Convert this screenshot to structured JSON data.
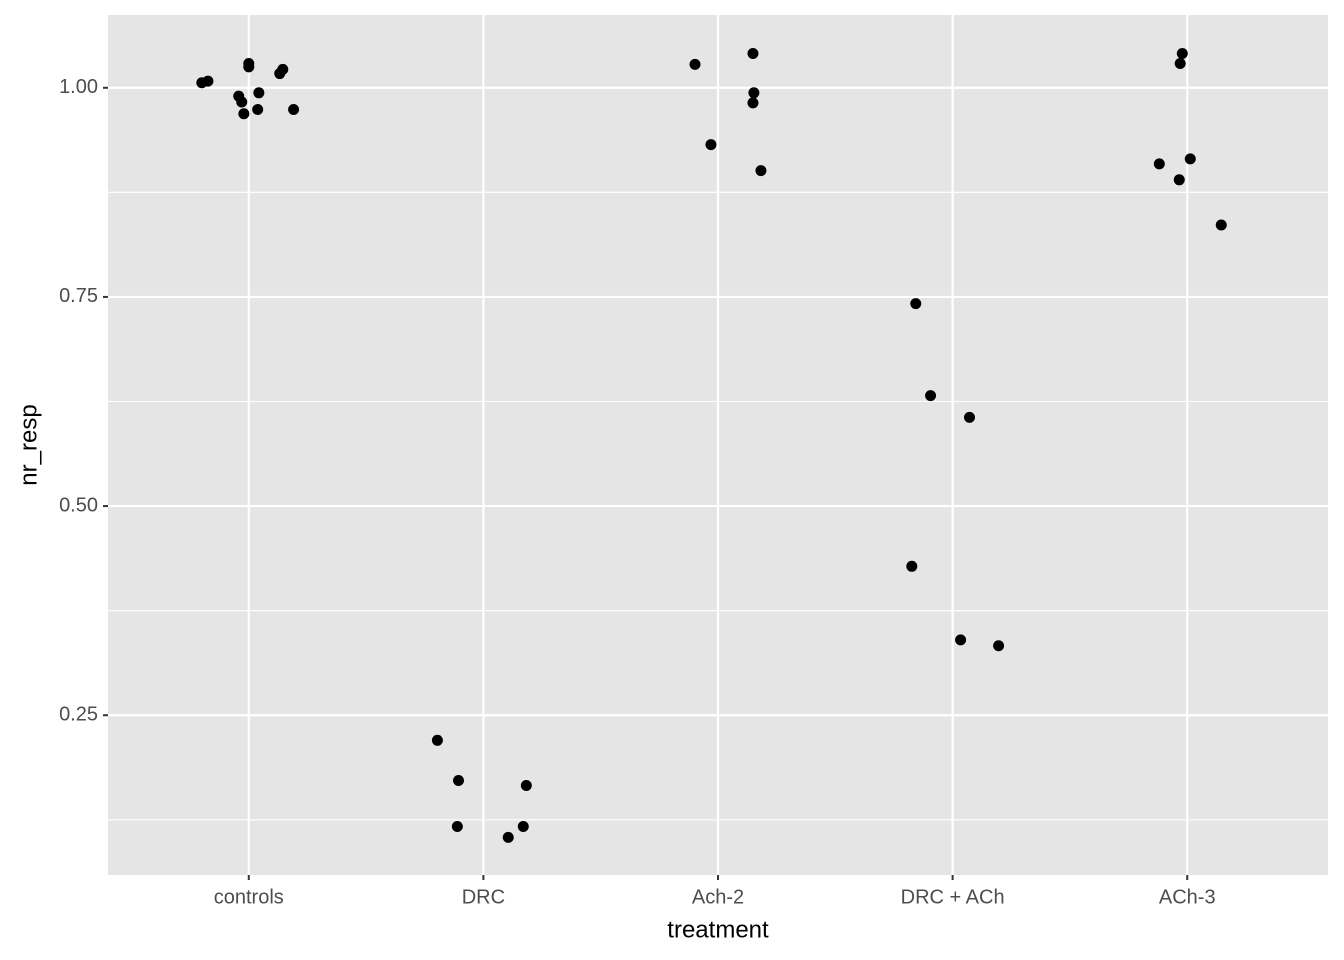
{
  "chart_data": {
    "type": "scatter",
    "x_label": "treatment",
    "y_label": "nr_resp",
    "xlim": [
      0.4,
      5.6
    ],
    "ylim": [
      0.059,
      1.087
    ],
    "xticks": [
      {
        "value": 1,
        "label": "controls"
      },
      {
        "value": 2,
        "label": "DRC"
      },
      {
        "value": 3,
        "label": "Ach-2"
      },
      {
        "value": 4,
        "label": "DRC + ACh"
      },
      {
        "value": 5,
        "label": "ACh-3"
      }
    ],
    "yticks": [
      {
        "value": 0.25,
        "label": "0.25"
      },
      {
        "value": 0.5,
        "label": "0.50"
      },
      {
        "value": 0.75,
        "label": "0.75"
      },
      {
        "value": 1,
        "label": "1.00"
      }
    ],
    "yminorticks": [
      0.125,
      0.375,
      0.625,
      0.875
    ],
    "grid": true,
    "series": [
      {
        "color": "#000000",
        "x": [
          0.8,
          0.826,
          0.957,
          0.97,
          0.979,
          1.0,
          1.0,
          1.038,
          1.043,
          1.132,
          1.145,
          1.191,
          1.804,
          1.894,
          1.889,
          2.106,
          2.17,
          2.183,
          2.902,
          2.97,
          3.149,
          3.153,
          3.149,
          3.183,
          3.843,
          3.906,
          4.072,
          3.826,
          4.034,
          4.196,
          4.979,
          4.97,
          4.881,
          4.966,
          5.013,
          5.145
        ],
        "values": [
          1.006,
          1.008,
          0.99,
          0.983,
          0.969,
          1.029,
          1.025,
          0.974,
          0.994,
          1.017,
          1.022,
          0.974,
          0.22,
          0.172,
          0.117,
          0.104,
          0.117,
          0.166,
          1.028,
          0.932,
          1.041,
          0.994,
          0.982,
          0.901,
          0.742,
          0.632,
          0.606,
          0.428,
          0.34,
          0.333,
          1.041,
          1.029,
          0.909,
          0.89,
          0.915,
          0.836
        ]
      }
    ]
  }
}
